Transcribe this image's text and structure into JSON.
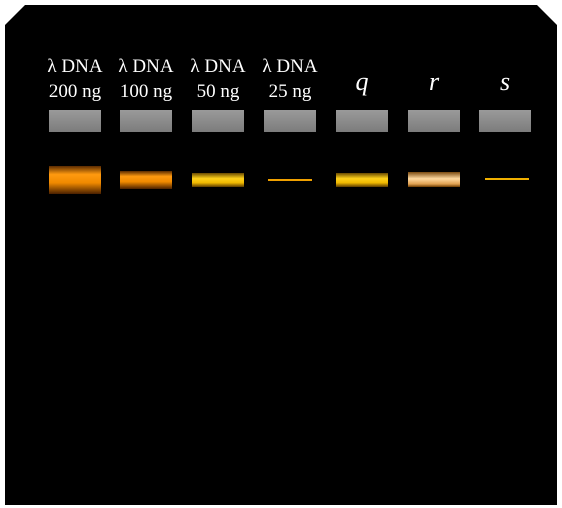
{
  "lanes": [
    {
      "label": "λ DNA",
      "amount": "200 ng"
    },
    {
      "label": "λ DNA",
      "amount": "100 ng"
    },
    {
      "label": "λ DNA",
      "amount": "50 ng"
    },
    {
      "label": "λ DNA",
      "amount": "25 ng"
    },
    {
      "label": "q"
    },
    {
      "label": "r"
    },
    {
      "label": "s"
    }
  ]
}
